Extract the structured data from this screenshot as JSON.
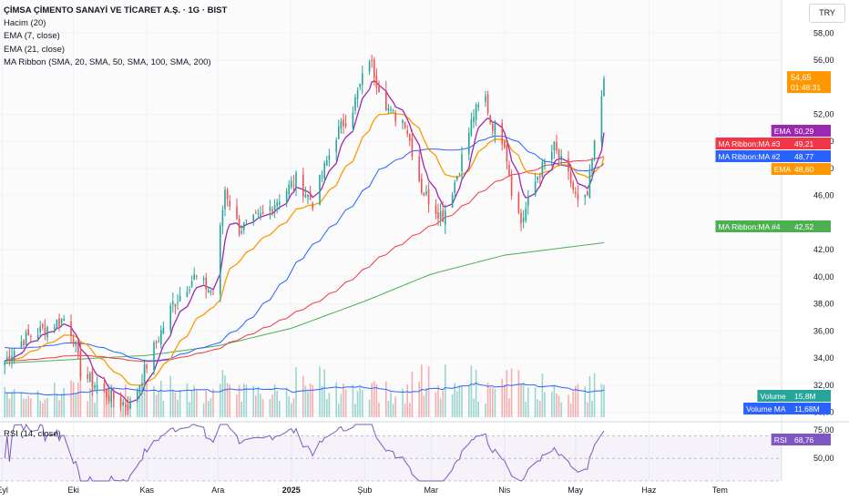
{
  "legend": {
    "title": "ÇİMSA ÇİMENTO SANAYİ VE TİCARET A.Ş. · 1G · BIST",
    "volume": "Hacim (20)",
    "ema7": "EMA (7, close)",
    "ema21": "EMA (21, close)",
    "ribbon": "MA Ribbon (SMA, 20, SMA, 50, SMA, 100, SMA, 200)"
  },
  "rsi_legend": "RSI (14, close)",
  "currency": "TRY",
  "colors": {
    "up": "#26a69a",
    "down": "#ef5350",
    "ema7": "#9c27b0",
    "ema21": "#ff9800",
    "ma2": "#2962ff",
    "ma3": "#f23645",
    "ma4": "#4caf50",
    "rsi": "#7e57c2",
    "volume_ma": "#2962ff",
    "price": "#ff9800"
  },
  "chart_data": [
    {
      "type": "candlestick",
      "title": "ÇİMSA ÇİMENTO SANAYİ VE TİCARET A.Ş. · 1G · BIST",
      "y_ticks": [
        "58,00",
        "56,00",
        "52,00",
        "50,00",
        "48,00",
        "46,00",
        "42,00",
        "40,00",
        "38,00",
        "36,00",
        "34,00",
        "32,00",
        "30,00"
      ],
      "y_tick_values": [
        58,
        56,
        52,
        50,
        48,
        46,
        42,
        40,
        38,
        36,
        34,
        32,
        30
      ],
      "ylim": [
        29.5,
        59.5
      ],
      "x_ticks": [
        "Eyl",
        "Eki",
        "Kas",
        "Ara",
        "2025",
        "Şub",
        "Mar",
        "Nis",
        "May",
        "Haz",
        "Tem"
      ],
      "x_tick_values": [
        "2024-09-01",
        "2024-10-01",
        "2024-11-01",
        "2024-12-01",
        "2025-01-01",
        "2025-02-01",
        "2025-03-01",
        "2025-04-01",
        "2025-05-01",
        "2025-06-01",
        "2025-07-01"
      ],
      "xlim": [
        "2024-08-31",
        "2025-07-27"
      ],
      "last_date": "2025-05-13",
      "close_anchors": {
        "dates": [
          "2024-08-31",
          "2024-09-10",
          "2024-09-28",
          "2024-10-01",
          "2024-10-04",
          "2024-10-15",
          "2024-10-25",
          "2024-11-01",
          "2024-11-12",
          "2024-11-21",
          "2024-11-29",
          "2024-12-04",
          "2024-12-10",
          "2024-12-20",
          "2025-01-03",
          "2025-01-10",
          "2025-01-20",
          "2025-01-27",
          "2025-02-03",
          "2025-02-06",
          "2025-02-12",
          "2025-02-18",
          "2025-02-25",
          "2025-03-03",
          "2025-03-06",
          "2025-03-12",
          "2025-03-19",
          "2025-03-24",
          "2025-03-26",
          "2025-04-01",
          "2025-04-04",
          "2025-04-08",
          "2025-04-15",
          "2025-04-22",
          "2025-04-29",
          "2025-05-03",
          "2025-05-06",
          "2025-05-13"
        ],
        "values": [
          33.4,
          35.4,
          37.0,
          35.5,
          33.0,
          31.3,
          30.4,
          33.5,
          38.0,
          40.0,
          38.8,
          46.5,
          43.5,
          44.5,
          47.2,
          45.5,
          50.5,
          52.5,
          56.2,
          54.5,
          52.0,
          51.5,
          46.5,
          45.0,
          44.5,
          47.5,
          52.0,
          53.2,
          51.5,
          50.0,
          46.5,
          44.0,
          47.5,
          49.5,
          47.0,
          44.8,
          46.0,
          54.65
        ]
      },
      "price": {
        "label": "54,65",
        "countdown": "01:48:31"
      },
      "series": [
        {
          "name": "EMA",
          "value": "50,29"
        },
        {
          "name": "MA Ribbon:MA #3",
          "value": "49,21"
        },
        {
          "name": "MA Ribbon:MA #2",
          "value": "48,77"
        },
        {
          "name": "EMA",
          "value": "48,60"
        },
        {
          "name": "MA Ribbon:MA #4",
          "value": "42,52"
        }
      ],
      "ma4_anchors": {
        "dates": [
          "2024-08-31",
          "2024-11-01",
          "2024-12-01",
          "2025-01-01",
          "2025-02-01",
          "2025-03-01",
          "2025-04-01",
          "2025-05-13"
        ],
        "values": [
          33.6,
          34.2,
          34.9,
          36.2,
          38.2,
          40.2,
          41.6,
          42.52
        ]
      },
      "volume": [
        {
          "name": "Volume",
          "value": "15,8M"
        },
        {
          "name": "Volume MA",
          "value": "11,68M"
        }
      ]
    },
    {
      "type": "line",
      "title": "RSI (14, close)",
      "y_ticks": [
        "75,00",
        "50,00"
      ],
      "y_tick_values": [
        75,
        50
      ],
      "ylim": [
        30,
        80
      ],
      "last": {
        "name": "RSI",
        "value": "68,76"
      }
    }
  ]
}
